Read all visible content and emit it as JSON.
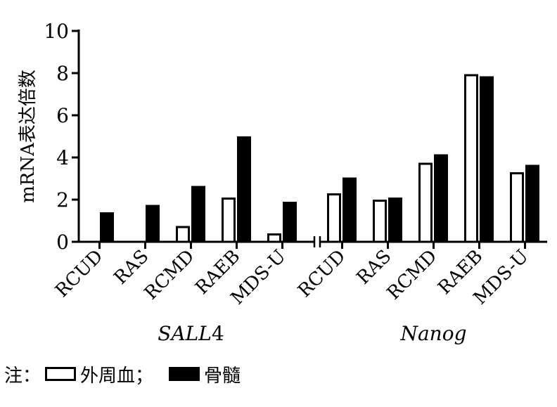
{
  "chart_data": {
    "type": "bar",
    "ylabel": "mRNA表达倍数",
    "ylim": [
      0,
      10
    ],
    "yticks": [
      "0",
      "2",
      "4",
      "6",
      "8",
      "10"
    ],
    "categories": [
      "RCUD",
      "RAS",
      "RCMD",
      "RAEB",
      "MDS-U"
    ],
    "groups": [
      {
        "name": "SALL4",
        "label_italic": "SALL",
        "label_roman": "4",
        "series": [
          {
            "name": "外周血",
            "values": [
              0,
              0,
              0.75,
              2.1,
              0.4
            ]
          },
          {
            "name": "骨髓",
            "values": [
              1.4,
              1.75,
              2.65,
              5.0,
              1.9
            ]
          }
        ]
      },
      {
        "name": "Nanog",
        "label_italic": "Nanog",
        "label_roman": "",
        "series": [
          {
            "name": "外周血",
            "values": [
              2.3,
              2.0,
              3.75,
              7.95,
              3.3
            ]
          },
          {
            "name": "骨髓",
            "values": [
              3.05,
              2.1,
              4.15,
              7.85,
              3.65
            ]
          }
        ]
      }
    ],
    "colors": {
      "外周血": "#ffffff",
      "骨髓": "#000000"
    }
  },
  "legend": {
    "prefix": "注：",
    "items": [
      {
        "label": "外周血；",
        "color": "#ffffff"
      },
      {
        "label": "骨髓",
        "color": "#000000"
      }
    ]
  }
}
